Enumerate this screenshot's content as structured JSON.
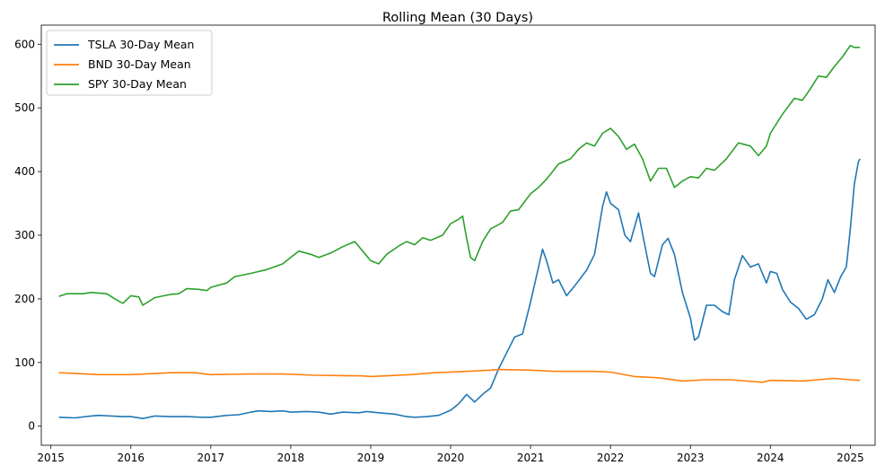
{
  "chart_data": {
    "type": "line",
    "title": "Rolling Mean (30 Days)",
    "xlabel": "",
    "ylabel": "",
    "xlim": [
      2014.88,
      2025.31
    ],
    "ylim": [
      -30,
      630
    ],
    "x_ticks": [
      2015,
      2016,
      2017,
      2018,
      2019,
      2020,
      2021,
      2022,
      2023,
      2024,
      2025
    ],
    "y_ticks": [
      0,
      100,
      200,
      300,
      400,
      500,
      600
    ],
    "grid": false,
    "legend_position": "top-left",
    "series": [
      {
        "name": "TSLA 30-Day Mean",
        "color": "#1f77b4",
        "points": [
          [
            2015.1,
            14
          ],
          [
            2015.3,
            13
          ],
          [
            2015.5,
            16
          ],
          [
            2015.6,
            17
          ],
          [
            2015.9,
            15
          ],
          [
            2016.0,
            15
          ],
          [
            2016.15,
            12
          ],
          [
            2016.3,
            16
          ],
          [
            2016.5,
            15
          ],
          [
            2016.7,
            15
          ],
          [
            2016.9,
            14
          ],
          [
            2017.0,
            14
          ],
          [
            2017.2,
            17
          ],
          [
            2017.35,
            18
          ],
          [
            2017.5,
            22
          ],
          [
            2017.6,
            24
          ],
          [
            2017.75,
            23
          ],
          [
            2017.9,
            24
          ],
          [
            2018.0,
            22
          ],
          [
            2018.2,
            23
          ],
          [
            2018.35,
            22
          ],
          [
            2018.5,
            19
          ],
          [
            2018.65,
            22
          ],
          [
            2018.85,
            21
          ],
          [
            2018.95,
            23
          ],
          [
            2019.1,
            21
          ],
          [
            2019.3,
            19
          ],
          [
            2019.45,
            15
          ],
          [
            2019.55,
            14
          ],
          [
            2019.7,
            15
          ],
          [
            2019.85,
            17
          ],
          [
            2020.0,
            25
          ],
          [
            2020.1,
            35
          ],
          [
            2020.2,
            50
          ],
          [
            2020.3,
            38
          ],
          [
            2020.4,
            50
          ],
          [
            2020.5,
            60
          ],
          [
            2020.6,
            90
          ],
          [
            2020.7,
            115
          ],
          [
            2020.8,
            140
          ],
          [
            2020.9,
            145
          ],
          [
            2021.0,
            195
          ],
          [
            2021.1,
            250
          ],
          [
            2021.15,
            278
          ],
          [
            2021.2,
            260
          ],
          [
            2021.28,
            225
          ],
          [
            2021.35,
            230
          ],
          [
            2021.45,
            205
          ],
          [
            2021.55,
            220
          ],
          [
            2021.7,
            245
          ],
          [
            2021.8,
            270
          ],
          [
            2021.9,
            345
          ],
          [
            2021.95,
            368
          ],
          [
            2022.0,
            350
          ],
          [
            2022.1,
            340
          ],
          [
            2022.18,
            300
          ],
          [
            2022.25,
            290
          ],
          [
            2022.35,
            335
          ],
          [
            2022.42,
            290
          ],
          [
            2022.5,
            240
          ],
          [
            2022.55,
            235
          ],
          [
            2022.65,
            285
          ],
          [
            2022.72,
            295
          ],
          [
            2022.8,
            270
          ],
          [
            2022.9,
            210
          ],
          [
            2023.0,
            170
          ],
          [
            2023.05,
            135
          ],
          [
            2023.1,
            140
          ],
          [
            2023.2,
            190
          ],
          [
            2023.3,
            190
          ],
          [
            2023.4,
            180
          ],
          [
            2023.48,
            175
          ],
          [
            2023.55,
            230
          ],
          [
            2023.65,
            268
          ],
          [
            2023.75,
            250
          ],
          [
            2023.85,
            255
          ],
          [
            2023.9,
            240
          ],
          [
            2023.95,
            225
          ],
          [
            2024.0,
            243
          ],
          [
            2024.08,
            240
          ],
          [
            2024.15,
            215
          ],
          [
            2024.25,
            195
          ],
          [
            2024.35,
            185
          ],
          [
            2024.45,
            168
          ],
          [
            2024.55,
            175
          ],
          [
            2024.65,
            200
          ],
          [
            2024.72,
            230
          ],
          [
            2024.8,
            210
          ],
          [
            2024.88,
            235
          ],
          [
            2024.95,
            250
          ],
          [
            2025.0,
            310
          ],
          [
            2025.05,
            380
          ],
          [
            2025.1,
            415
          ],
          [
            2025.12,
            420
          ]
        ]
      },
      {
        "name": "BND 30-Day Mean",
        "color": "#ff7f0e",
        "points": [
          [
            2015.1,
            84
          ],
          [
            2015.3,
            83
          ],
          [
            2015.6,
            81
          ],
          [
            2016.0,
            81
          ],
          [
            2016.5,
            84
          ],
          [
            2016.8,
            84
          ],
          [
            2017.0,
            81
          ],
          [
            2017.5,
            82
          ],
          [
            2017.9,
            82
          ],
          [
            2018.3,
            80
          ],
          [
            2018.9,
            79
          ],
          [
            2019.0,
            78
          ],
          [
            2019.5,
            81
          ],
          [
            2019.8,
            84
          ],
          [
            2020.2,
            86
          ],
          [
            2020.5,
            88
          ],
          [
            2020.6,
            89
          ],
          [
            2021.0,
            88
          ],
          [
            2021.3,
            86
          ],
          [
            2021.8,
            86
          ],
          [
            2022.0,
            85
          ],
          [
            2022.3,
            78
          ],
          [
            2022.6,
            76
          ],
          [
            2022.9,
            71
          ],
          [
            2023.2,
            73
          ],
          [
            2023.5,
            73
          ],
          [
            2023.9,
            69
          ],
          [
            2024.0,
            72
          ],
          [
            2024.4,
            71
          ],
          [
            2024.8,
            75
          ],
          [
            2025.0,
            73
          ],
          [
            2025.12,
            72
          ]
        ]
      },
      {
        "name": "SPY 30-Day Mean",
        "color": "#2ca02c",
        "points": [
          [
            2015.1,
            204
          ],
          [
            2015.2,
            208
          ],
          [
            2015.4,
            208
          ],
          [
            2015.5,
            210
          ],
          [
            2015.7,
            208
          ],
          [
            2015.8,
            200
          ],
          [
            2015.9,
            193
          ],
          [
            2016.0,
            205
          ],
          [
            2016.1,
            203
          ],
          [
            2016.15,
            190
          ],
          [
            2016.3,
            202
          ],
          [
            2016.5,
            207
          ],
          [
            2016.6,
            208
          ],
          [
            2016.7,
            216
          ],
          [
            2016.85,
            215
          ],
          [
            2016.95,
            213
          ],
          [
            2017.0,
            218
          ],
          [
            2017.2,
            225
          ],
          [
            2017.3,
            235
          ],
          [
            2017.5,
            240
          ],
          [
            2017.7,
            246
          ],
          [
            2017.9,
            255
          ],
          [
            2018.0,
            265
          ],
          [
            2018.1,
            275
          ],
          [
            2018.25,
            270
          ],
          [
            2018.35,
            265
          ],
          [
            2018.5,
            272
          ],
          [
            2018.65,
            282
          ],
          [
            2018.8,
            290
          ],
          [
            2018.9,
            275
          ],
          [
            2019.0,
            260
          ],
          [
            2019.1,
            255
          ],
          [
            2019.2,
            270
          ],
          [
            2019.35,
            283
          ],
          [
            2019.45,
            290
          ],
          [
            2019.55,
            285
          ],
          [
            2019.65,
            296
          ],
          [
            2019.75,
            292
          ],
          [
            2019.9,
            300
          ],
          [
            2020.0,
            318
          ],
          [
            2020.1,
            325
          ],
          [
            2020.15,
            330
          ],
          [
            2020.2,
            295
          ],
          [
            2020.25,
            265
          ],
          [
            2020.3,
            260
          ],
          [
            2020.4,
            290
          ],
          [
            2020.5,
            310
          ],
          [
            2020.65,
            320
          ],
          [
            2020.75,
            338
          ],
          [
            2020.85,
            340
          ],
          [
            2021.0,
            365
          ],
          [
            2021.1,
            375
          ],
          [
            2021.2,
            388
          ],
          [
            2021.35,
            412
          ],
          [
            2021.5,
            420
          ],
          [
            2021.6,
            435
          ],
          [
            2021.7,
            445
          ],
          [
            2021.8,
            440
          ],
          [
            2021.9,
            460
          ],
          [
            2022.0,
            468
          ],
          [
            2022.1,
            455
          ],
          [
            2022.2,
            435
          ],
          [
            2022.3,
            443
          ],
          [
            2022.4,
            420
          ],
          [
            2022.5,
            385
          ],
          [
            2022.6,
            405
          ],
          [
            2022.7,
            405
          ],
          [
            2022.8,
            375
          ],
          [
            2022.9,
            385
          ],
          [
            2023.0,
            392
          ],
          [
            2023.1,
            390
          ],
          [
            2023.2,
            405
          ],
          [
            2023.3,
            402
          ],
          [
            2023.45,
            420
          ],
          [
            2023.6,
            445
          ],
          [
            2023.75,
            440
          ],
          [
            2023.85,
            425
          ],
          [
            2023.95,
            440
          ],
          [
            2024.0,
            460
          ],
          [
            2024.15,
            490
          ],
          [
            2024.3,
            515
          ],
          [
            2024.4,
            512
          ],
          [
            2024.5,
            530
          ],
          [
            2024.6,
            550
          ],
          [
            2024.7,
            548
          ],
          [
            2024.8,
            565
          ],
          [
            2024.9,
            580
          ],
          [
            2025.0,
            598
          ],
          [
            2025.05,
            595
          ],
          [
            2025.12,
            595
          ]
        ]
      }
    ]
  }
}
